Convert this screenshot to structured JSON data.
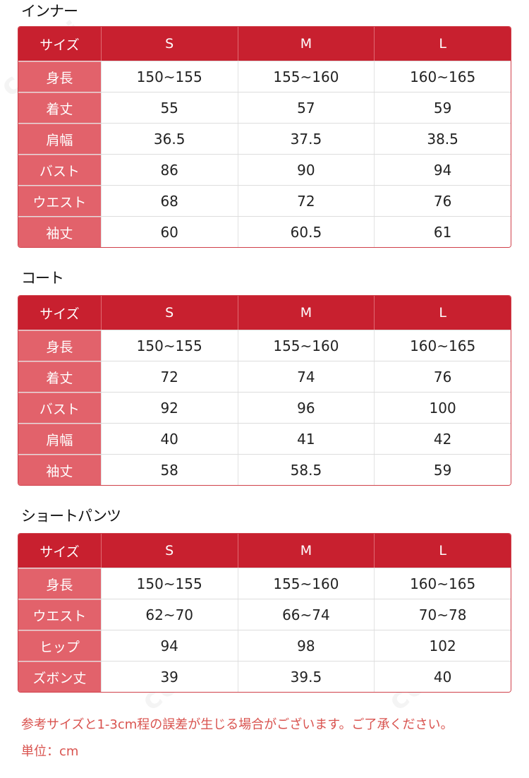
{
  "tables": [
    {
      "title": "インナー",
      "header": [
        "サイズ",
        "S",
        "M",
        "L"
      ],
      "rows": [
        [
          "身長",
          "150~155",
          "155~160",
          "160~165"
        ],
        [
          "着丈",
          "55",
          "57",
          "59"
        ],
        [
          "肩幅",
          "36.5",
          "37.5",
          "38.5"
        ],
        [
          "バスト",
          "86",
          "90",
          "94"
        ],
        [
          "ウエスト",
          "68",
          "72",
          "76"
        ],
        [
          "袖丈",
          "60",
          "60.5",
          "61"
        ]
      ]
    },
    {
      "title": "コート",
      "header": [
        "サイズ",
        "S",
        "M",
        "L"
      ],
      "rows": [
        [
          "身長",
          "150~155",
          "155~160",
          "160~165"
        ],
        [
          "着丈",
          "72",
          "74",
          "76"
        ],
        [
          "バスト",
          "92",
          "96",
          "100"
        ],
        [
          "肩幅",
          "40",
          "41",
          "42"
        ],
        [
          "袖丈",
          "58",
          "58.5",
          "59"
        ]
      ]
    },
    {
      "title": "ショートパンツ",
      "header": [
        "サイズ",
        "S",
        "M",
        "L"
      ],
      "rows": [
        [
          "身長",
          "150~155",
          "155~160",
          "160~165"
        ],
        [
          "ウエスト",
          "62~70",
          "66~74",
          "70~78"
        ],
        [
          "ヒップ",
          "94",
          "98",
          "102"
        ],
        [
          "ズボン丈",
          "39",
          "39.5",
          "40"
        ]
      ]
    }
  ],
  "notes": {
    "disclaimer": "参考サイズと1-3cm程の誤差が生じる場合がございます。ご了承ください。",
    "unit": "単位：cm"
  },
  "watermark_text": "cosmi",
  "colors": {
    "header_bg": "#c8202f",
    "label_bg": "#e2626b",
    "note_text": "#d9534f"
  }
}
